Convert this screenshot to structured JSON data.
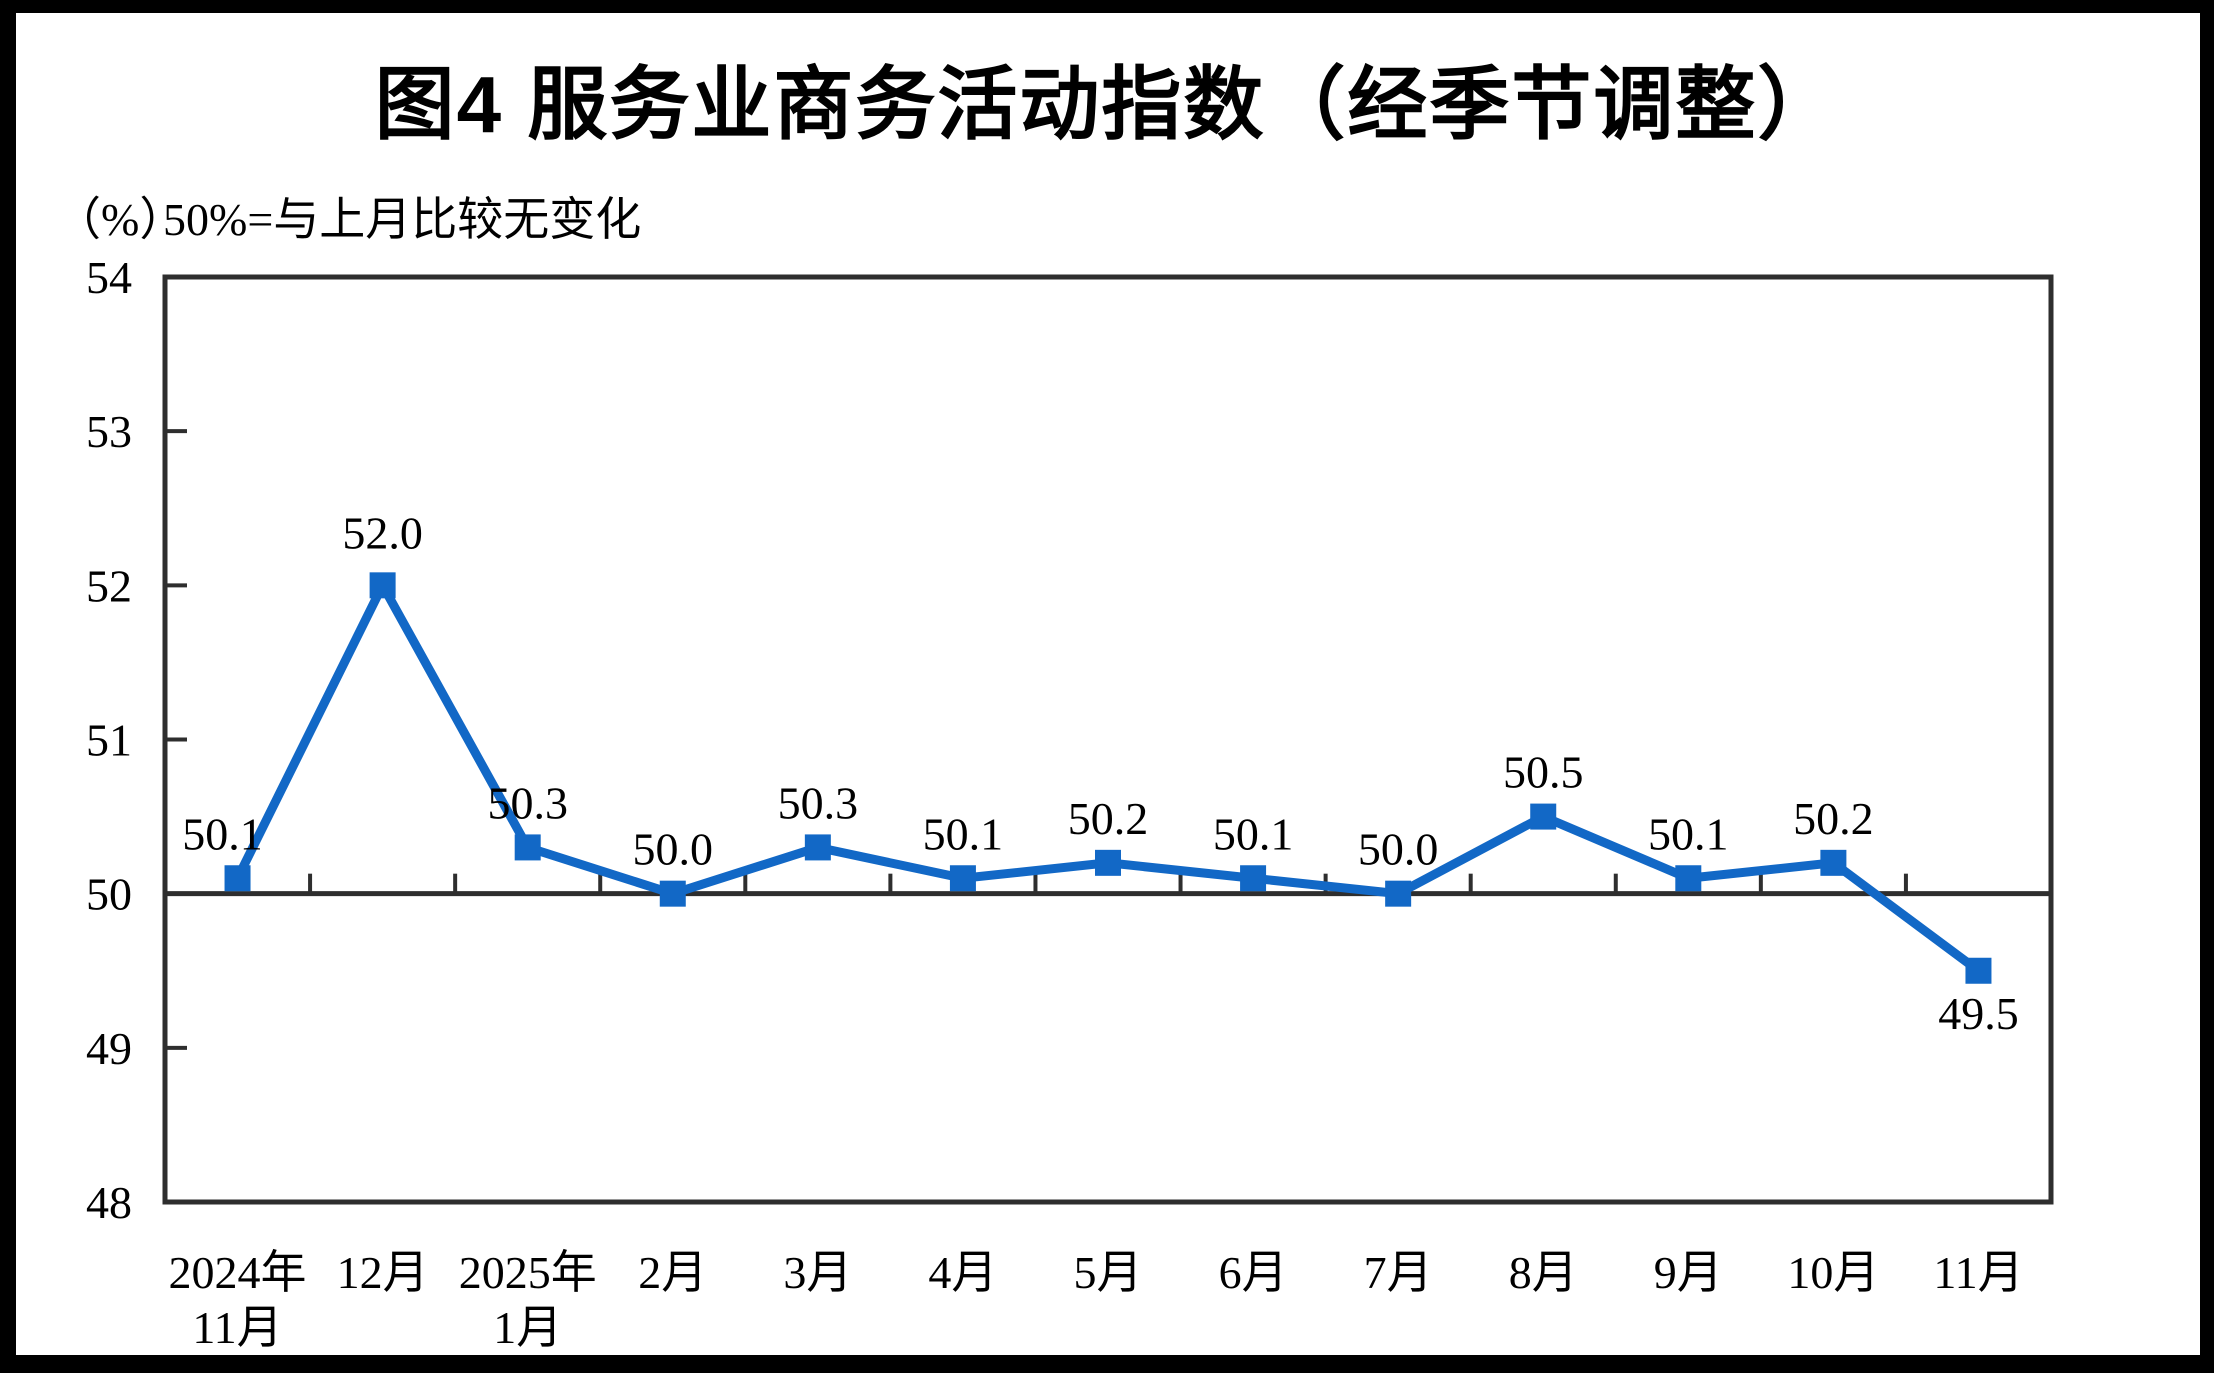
{
  "colors": {
    "line": "#1268C6",
    "marker": "#1268C6",
    "axis": "#2E2E2E",
    "text": "#000000",
    "frame": "#000000",
    "background": "#FFFFFF"
  },
  "chart_data": {
    "type": "line",
    "title": "图4 服务业商务活动指数（经季节调整）",
    "ylabel_unit": "（%）",
    "annotation": "50%=与上月比较无变化",
    "categories": [
      [
        "2024年",
        "11月"
      ],
      [
        "12月"
      ],
      [
        "2025年",
        "1月"
      ],
      [
        "2月"
      ],
      [
        "3月"
      ],
      [
        "4月"
      ],
      [
        "5月"
      ],
      [
        "6月"
      ],
      [
        "7月"
      ],
      [
        "8月"
      ],
      [
        "9月"
      ],
      [
        "10月"
      ],
      [
        "11月"
      ]
    ],
    "values": [
      50.1,
      52.0,
      50.3,
      50.0,
      50.3,
      50.1,
      50.2,
      50.1,
      50.0,
      50.5,
      50.1,
      50.2,
      49.5
    ],
    "point_labels": [
      "50.1",
      "52.0",
      "50.3",
      "50.0",
      "50.3",
      "50.1",
      "50.2",
      "50.1",
      "50.0",
      "50.5",
      "50.1",
      "50.2",
      "49.5"
    ],
    "label_side": [
      "above",
      "above",
      "above",
      "above",
      "above",
      "above",
      "above",
      "above",
      "above",
      "above",
      "above",
      "above",
      "below"
    ],
    "ylim": [
      48,
      54
    ],
    "yticks": [
      48,
      49,
      50,
      51,
      52,
      53,
      54
    ],
    "baseline_value": 50,
    "marker": "square",
    "grid": false,
    "legend": false
  }
}
